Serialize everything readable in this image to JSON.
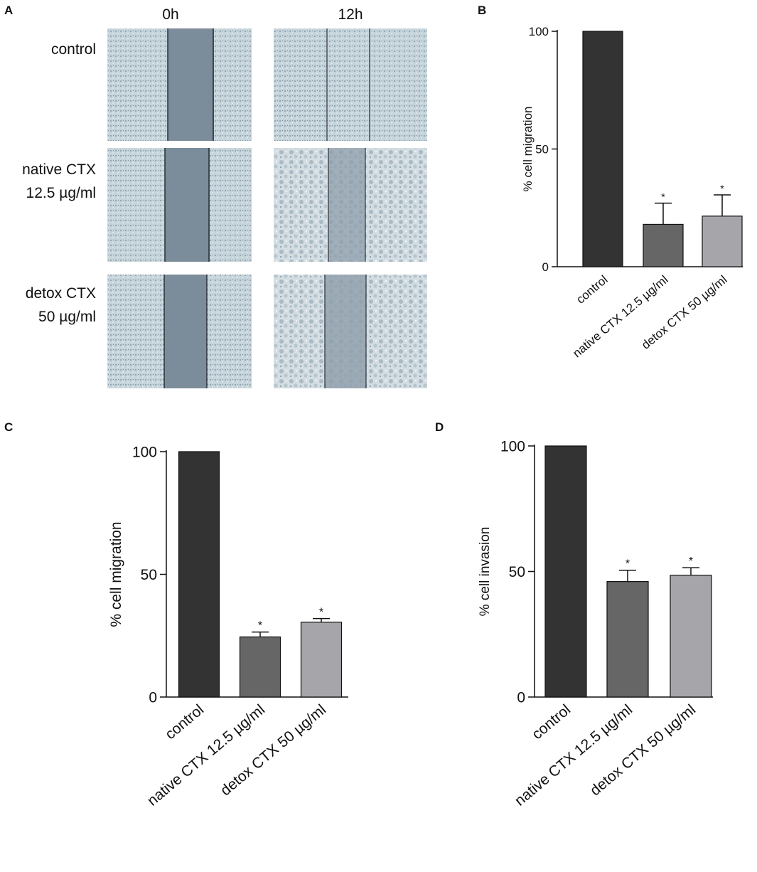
{
  "figure": {
    "panel_letters": [
      "A",
      "B",
      "C",
      "D"
    ]
  },
  "panel_a": {
    "columns": [
      "0h",
      "12h"
    ],
    "rows": [
      {
        "lines": [
          "control"
        ]
      },
      {
        "lines": [
          "native CTX",
          "12.5 µg/ml"
        ]
      },
      {
        "lines": [
          "detox CTX",
          "50 µg/ml"
        ]
      }
    ],
    "colors": {
      "cells": "#c9d6dc",
      "gap": "#7a8a98",
      "edge": "#2a3038"
    }
  },
  "chart_data": [
    {
      "panel": "B",
      "type": "bar",
      "categories": [
        "control",
        "native CTX 12.5 µg/ml",
        "detox CTX 50 µg/ml"
      ],
      "values": [
        100,
        18,
        21.5
      ],
      "errors": [
        0,
        9,
        9
      ],
      "significance": [
        "",
        "*",
        "*"
      ],
      "ylabel": "% cell migration",
      "yticks": [
        0,
        50,
        100
      ],
      "ylim": [
        0,
        100
      ],
      "colors": [
        "#333333",
        "#666666",
        "#a6a6aa"
      ]
    },
    {
      "panel": "C",
      "type": "bar",
      "categories": [
        "control",
        "native CTX 12.5 µg/ml",
        "detox CTX 50 µg/ml"
      ],
      "values": [
        100,
        24.5,
        30.5
      ],
      "errors": [
        0,
        2,
        1.5
      ],
      "significance": [
        "",
        "*",
        "*"
      ],
      "ylabel": "% cell migration",
      "yticks": [
        0,
        50,
        100
      ],
      "ylim": [
        0,
        100
      ],
      "colors": [
        "#333333",
        "#666666",
        "#a6a6aa"
      ]
    },
    {
      "panel": "D",
      "type": "bar",
      "categories": [
        "control",
        "native CTX 12.5 µg/ml",
        "detox CTX 50 µg/ml"
      ],
      "values": [
        100,
        46,
        48.5
      ],
      "errors": [
        0,
        4.5,
        3
      ],
      "significance": [
        "",
        "*",
        "*"
      ],
      "ylabel": "% cell invasion",
      "yticks": [
        0,
        50,
        100
      ],
      "ylim": [
        0,
        100
      ],
      "colors": [
        "#333333",
        "#666666",
        "#a6a6aa"
      ]
    }
  ]
}
